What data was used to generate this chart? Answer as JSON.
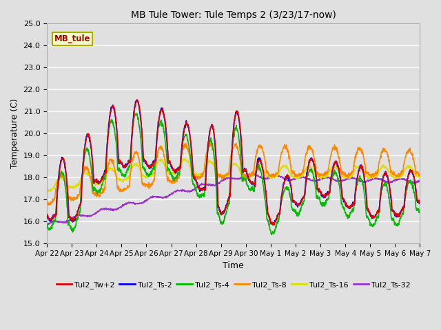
{
  "title": "MB Tule Tower: Tule Temps 2 (3/23/17-now)",
  "xlabel": "Time",
  "ylabel": "Temperature (C)",
  "ylim": [
    15.0,
    25.0
  ],
  "yticks": [
    15.0,
    16.0,
    17.0,
    18.0,
    19.0,
    20.0,
    21.0,
    22.0,
    23.0,
    24.0,
    25.0
  ],
  "bg_color": "#e0e0e0",
  "grid_color": "#ffffff",
  "series": {
    "Tul2_Tw+2": {
      "color": "#dd0000",
      "lw": 1.2,
      "zorder": 6
    },
    "Tul2_Ts-2": {
      "color": "#0000ee",
      "lw": 1.2,
      "zorder": 5
    },
    "Tul2_Ts-4": {
      "color": "#00bb00",
      "lw": 1.2,
      "zorder": 4
    },
    "Tul2_Ts-8": {
      "color": "#ff8800",
      "lw": 1.2,
      "zorder": 3
    },
    "Tul2_Ts-16": {
      "color": "#dddd00",
      "lw": 1.2,
      "zorder": 2
    },
    "Tul2_Ts-32": {
      "color": "#9933cc",
      "lw": 1.2,
      "zorder": 1
    }
  },
  "xtick_labels": [
    "Apr 22",
    "Apr 23",
    "Apr 24",
    "Apr 25",
    "Apr 26",
    "Apr 27",
    "Apr 28",
    "Apr 29",
    "Apr 30",
    "May 1",
    "May 2",
    "May 3",
    "May 4",
    "May 5",
    "May 6",
    "May 7"
  ],
  "station_label": "MB_tule",
  "station_label_color": "#aa0000",
  "station_box_color": "#ffffcc",
  "station_box_edge": "#aaaa00"
}
